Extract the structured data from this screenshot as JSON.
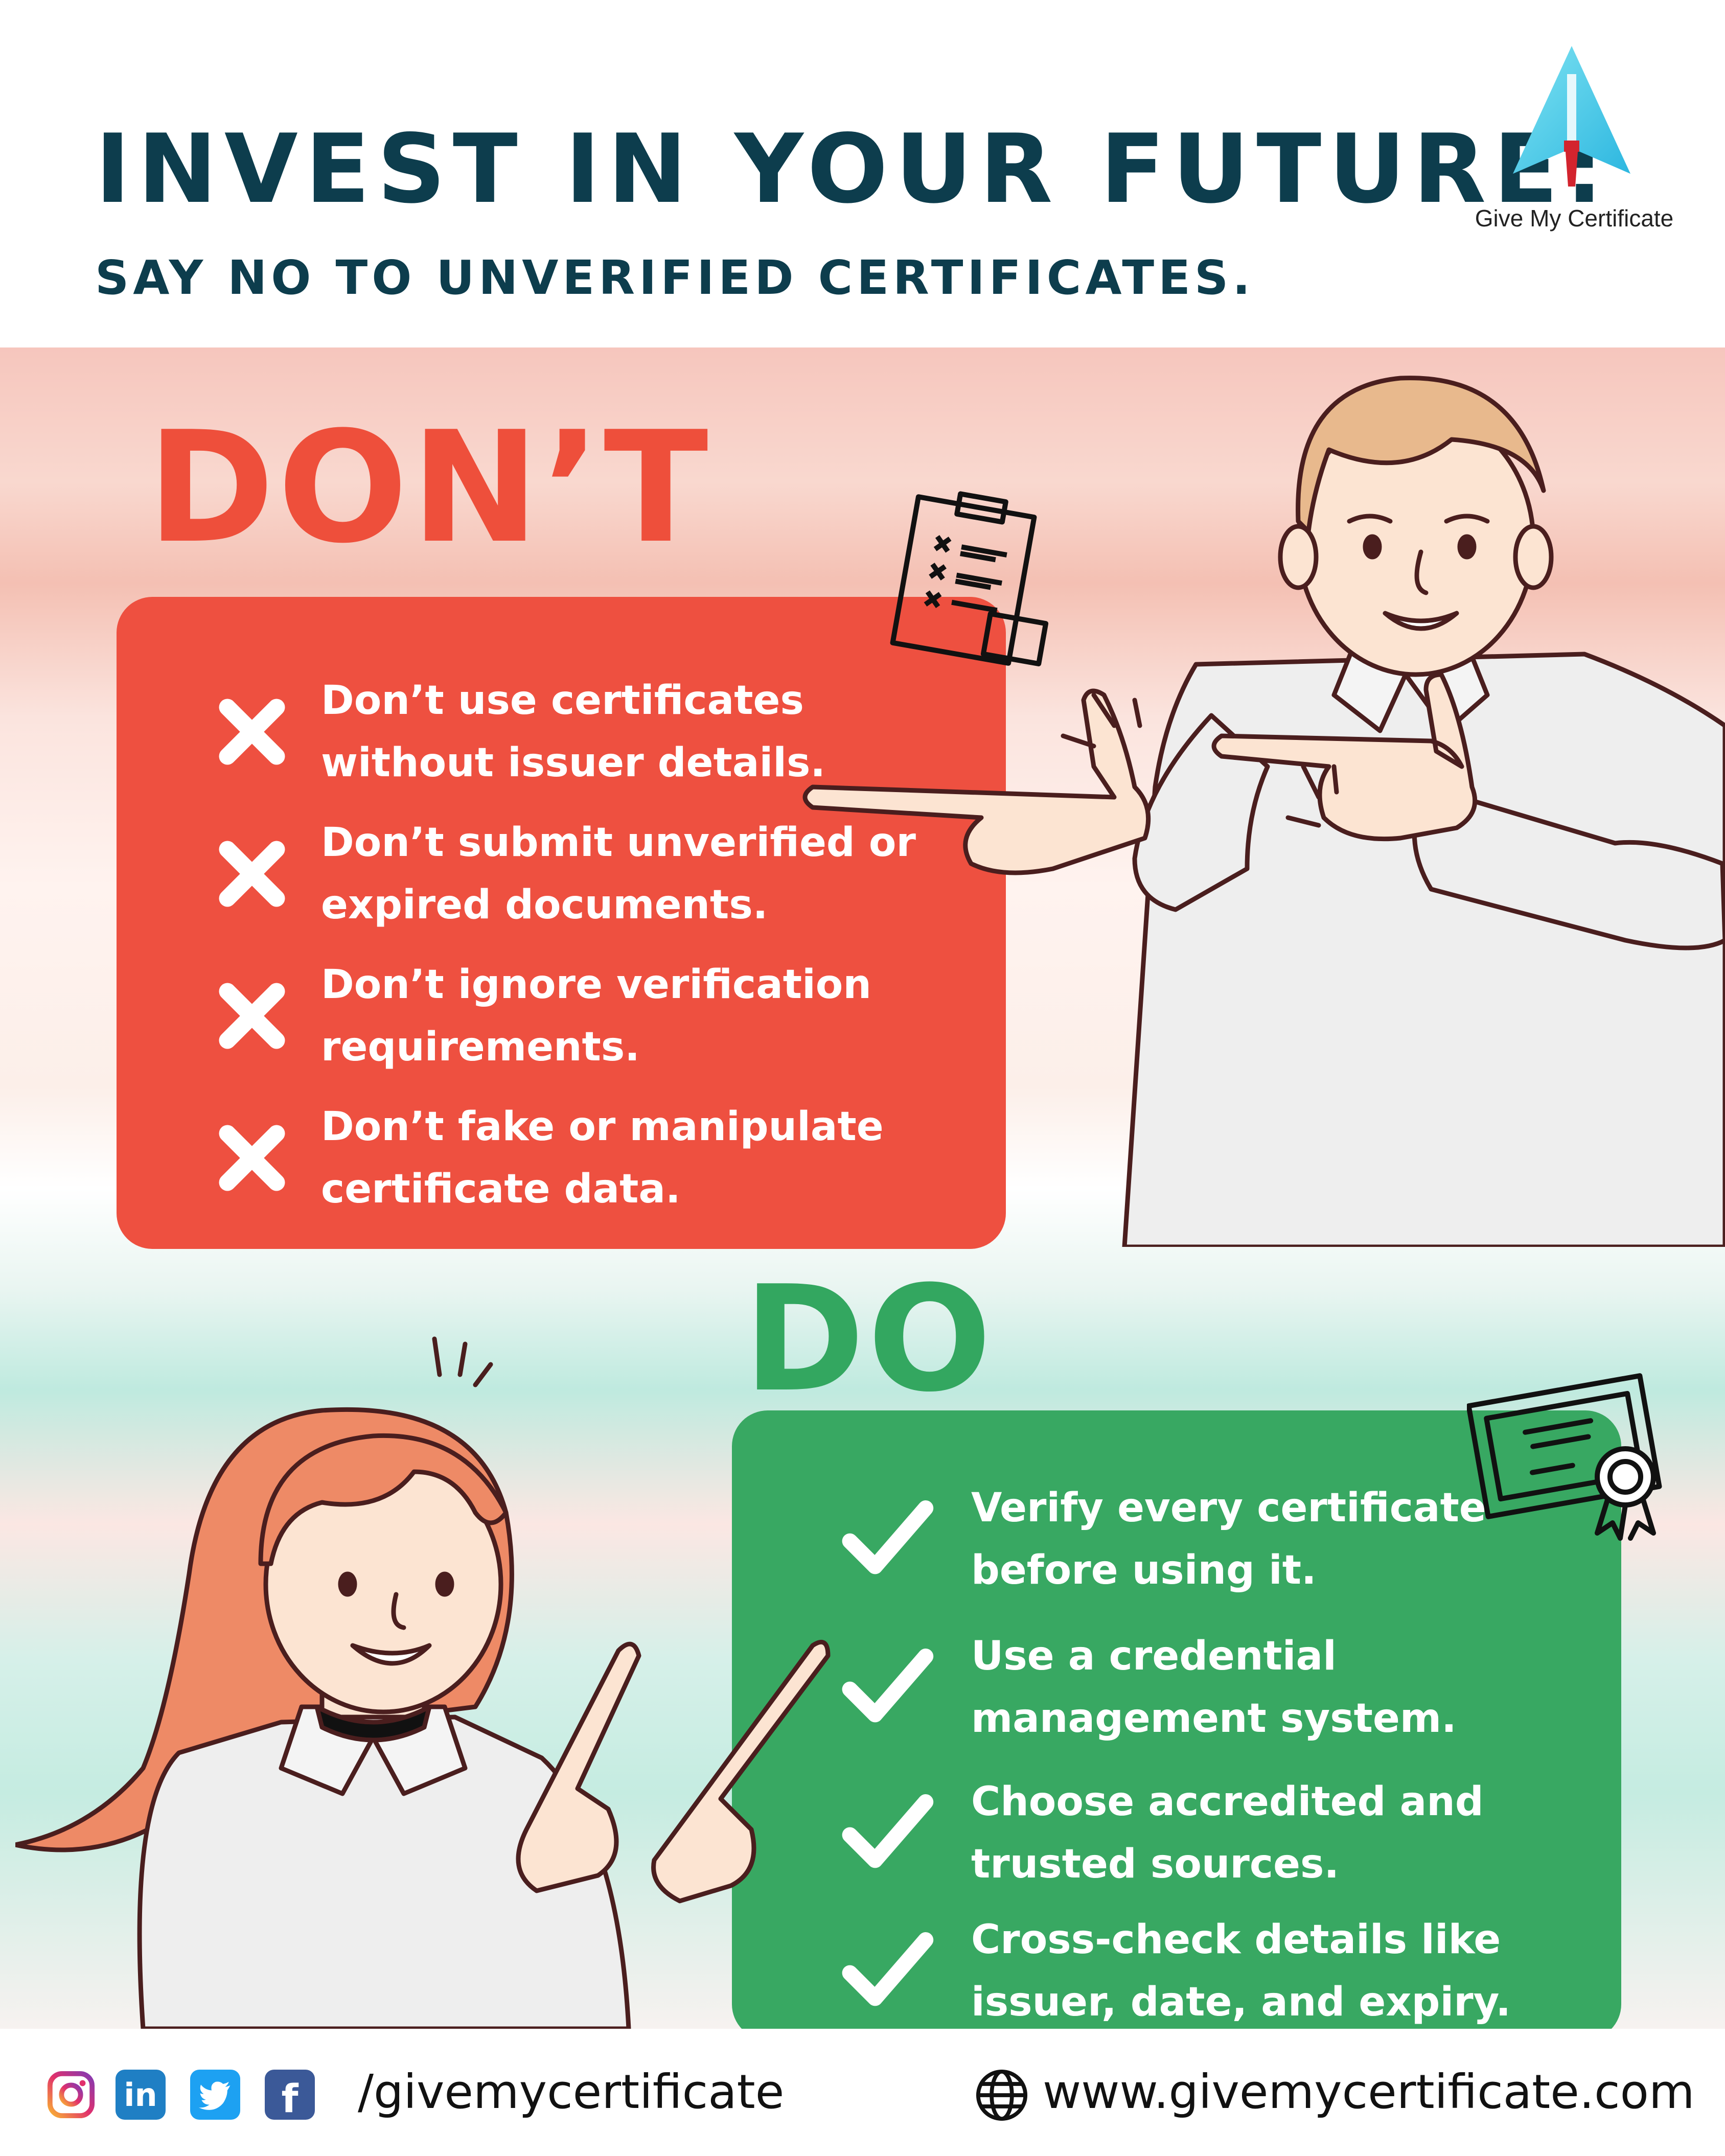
{
  "header": {
    "title": "INVEST IN YOUR FUTURE:",
    "subtitle": "SAY NO TO UNVERIFIED CERTIFICATES.",
    "brand_name": "Give My Certificate"
  },
  "dont": {
    "heading": "DON’T",
    "items": [
      "Don’t use certificates\nwithout issuer details.",
      "Don’t submit unverified or\nexpired documents.",
      "Don’t ignore verification\nrequirements.",
      "Don’t fake or manipulate\ncertificate data."
    ]
  },
  "do": {
    "heading": "DO",
    "items": [
      "Verify every certificate\nbefore using it.",
      "Use a credential\nmanagement system.",
      "Choose accredited and\ntrusted sources.",
      "Cross-check details like\nissuer, date, and expiry."
    ]
  },
  "footer": {
    "handle": "/givemycertificate",
    "website": "www.givemycertificate.com",
    "social_icons": [
      "instagram-icon",
      "linkedin-icon",
      "twitter-icon",
      "facebook-icon"
    ]
  },
  "colors": {
    "title": "#0d3d4d",
    "dont_red": "#ee5040",
    "do_green": "#38a862",
    "do_heading_green": "#33a760"
  }
}
